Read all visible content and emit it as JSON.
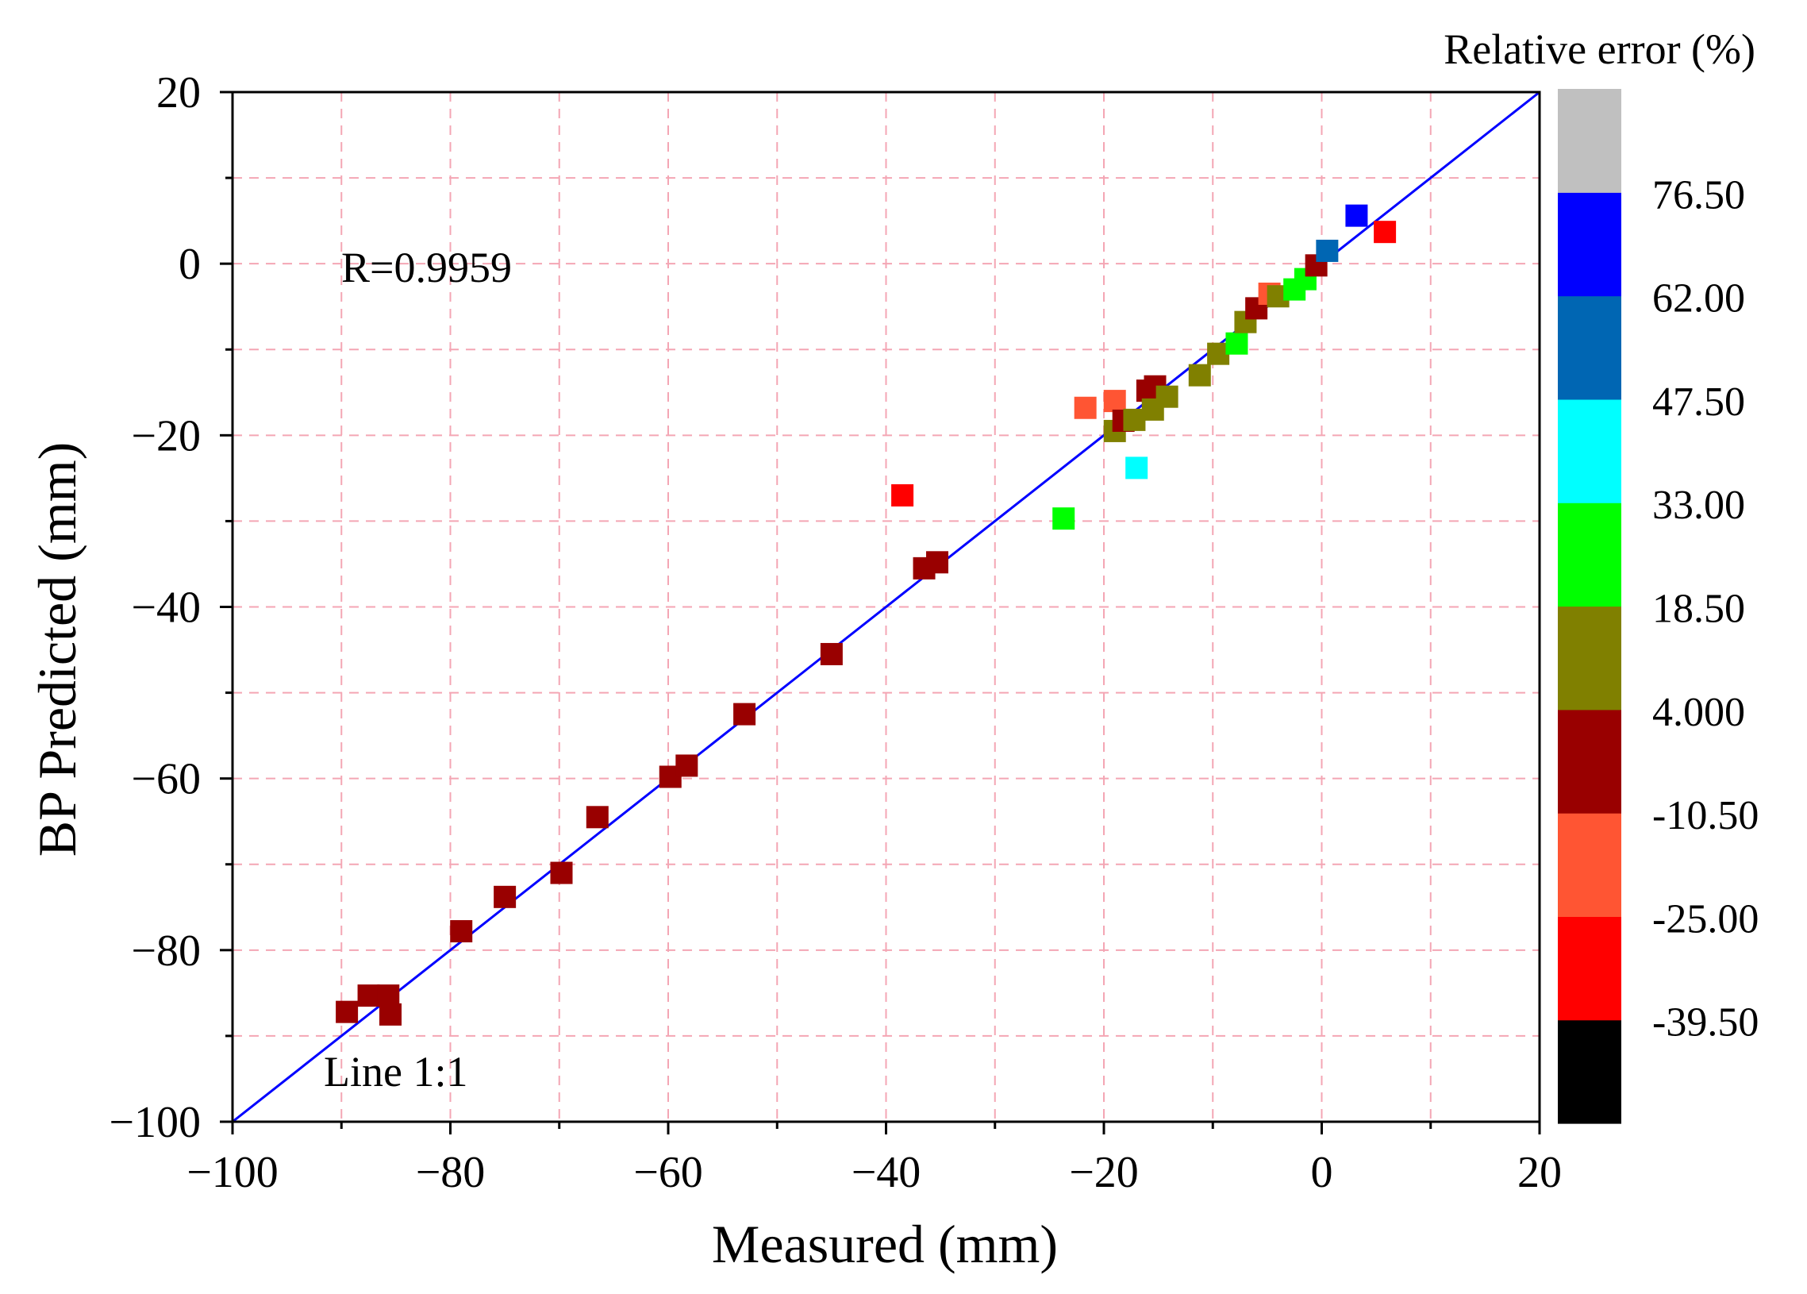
{
  "chart_data": {
    "type": "scatter",
    "xlabel": "Measured (mm)",
    "ylabel": "BP Predicted (mm)",
    "xlim": [
      -100,
      20
    ],
    "ylim": [
      -100,
      20
    ],
    "x_ticks": [
      -100,
      -80,
      -60,
      -40,
      -20,
      0,
      20
    ],
    "y_ticks": [
      -100,
      -80,
      -60,
      -40,
      -20,
      0,
      20
    ],
    "x_tick_labels": [
      "−100",
      "−80",
      "−60",
      "−40",
      "−20",
      "0",
      "20"
    ],
    "y_tick_labels": [
      "−100",
      "−80",
      "−60",
      "−40",
      "−20",
      "0",
      "20"
    ],
    "grid": true,
    "annotation": "R=0.9959",
    "line_label": "Line 1:1",
    "line_color": "#0000ff",
    "colorbar": {
      "title": "Relative error (%)",
      "colors": [
        "#000000",
        "#ff0000",
        "#ff5533",
        "#990000",
        "#808000",
        "#00ff00",
        "#00ffff",
        "#0066b3",
        "#0000ff",
        "#c0c0c0"
      ],
      "labels": [
        "-39.50",
        "-25.00",
        "-10.50",
        "4.000",
        "18.50",
        "33.00",
        "47.50",
        "62.00",
        "76.50"
      ]
    },
    "points": [
      {
        "x": -89.5,
        "y": -87.2,
        "color": "#990000"
      },
      {
        "x": -87.5,
        "y": -85.3,
        "color": "#990000"
      },
      {
        "x": -85.7,
        "y": -85.3,
        "color": "#990000"
      },
      {
        "x": -85.5,
        "y": -87.5,
        "color": "#990000"
      },
      {
        "x": -79.0,
        "y": -77.8,
        "color": "#990000"
      },
      {
        "x": -75.0,
        "y": -73.8,
        "color": "#990000"
      },
      {
        "x": -69.8,
        "y": -71.0,
        "color": "#990000"
      },
      {
        "x": -66.5,
        "y": -64.5,
        "color": "#990000"
      },
      {
        "x": -59.8,
        "y": -59.8,
        "color": "#990000"
      },
      {
        "x": -58.3,
        "y": -58.5,
        "color": "#990000"
      },
      {
        "x": -53.0,
        "y": -52.5,
        "color": "#990000"
      },
      {
        "x": -45.0,
        "y": -45.5,
        "color": "#990000"
      },
      {
        "x": -38.5,
        "y": -27.0,
        "color": "#ff0000"
      },
      {
        "x": -36.5,
        "y": -35.5,
        "color": "#990000"
      },
      {
        "x": -35.3,
        "y": -34.8,
        "color": "#990000"
      },
      {
        "x": -23.7,
        "y": -29.7,
        "color": "#00ff00"
      },
      {
        "x": -21.7,
        "y": -16.8,
        "color": "#ff5533"
      },
      {
        "x": -19.0,
        "y": -16.0,
        "color": "#ff5533"
      },
      {
        "x": -19.0,
        "y": -19.5,
        "color": "#808000"
      },
      {
        "x": -18.2,
        "y": -18.3,
        "color": "#990000"
      },
      {
        "x": -17.2,
        "y": -18.2,
        "color": "#808000"
      },
      {
        "x": -17.0,
        "y": -23.8,
        "color": "#00ffff"
      },
      {
        "x": -16.0,
        "y": -14.8,
        "color": "#990000"
      },
      {
        "x": -15.5,
        "y": -17.0,
        "color": "#808000"
      },
      {
        "x": -15.3,
        "y": -14.3,
        "color": "#990000"
      },
      {
        "x": -14.2,
        "y": -15.5,
        "color": "#808000"
      },
      {
        "x": -11.2,
        "y": -13.0,
        "color": "#808000"
      },
      {
        "x": -9.5,
        "y": -10.5,
        "color": "#808000"
      },
      {
        "x": -7.8,
        "y": -9.3,
        "color": "#00ff00"
      },
      {
        "x": -7.0,
        "y": -6.8,
        "color": "#808000"
      },
      {
        "x": -6.0,
        "y": -5.2,
        "color": "#990000"
      },
      {
        "x": -4.8,
        "y": -3.5,
        "color": "#ff5533"
      },
      {
        "x": -4.0,
        "y": -3.8,
        "color": "#808000"
      },
      {
        "x": -2.5,
        "y": -3.0,
        "color": "#00ff00"
      },
      {
        "x": -1.5,
        "y": -1.8,
        "color": "#00ff00"
      },
      {
        "x": -0.5,
        "y": -0.2,
        "color": "#990000"
      },
      {
        "x": 0.5,
        "y": 1.5,
        "color": "#0066b3"
      },
      {
        "x": 3.2,
        "y": 5.6,
        "color": "#0000ff"
      },
      {
        "x": 5.8,
        "y": 3.7,
        "color": "#ff0000"
      }
    ]
  }
}
